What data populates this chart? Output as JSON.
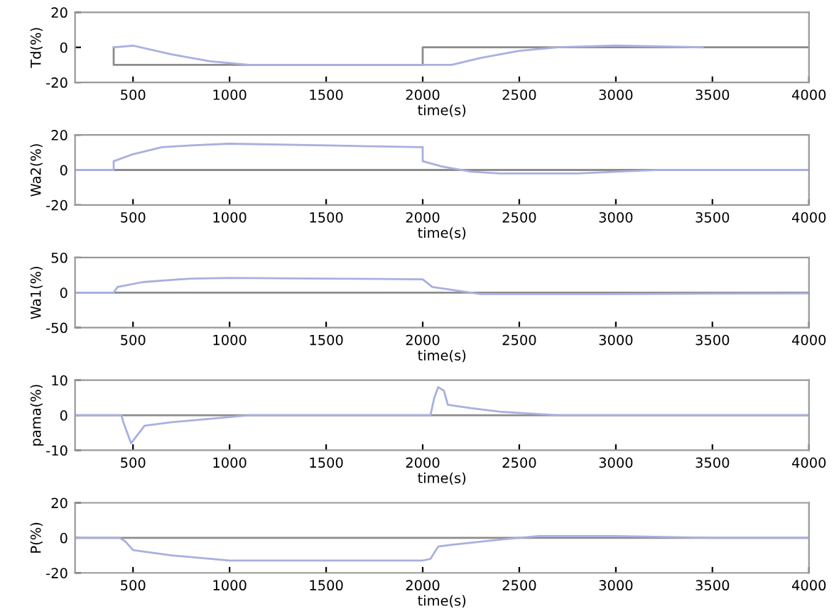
{
  "chart_data": [
    {
      "type": "line",
      "xlabel": "time(s)",
      "ylabel": "Td(%)",
      "xlim": [
        200,
        4000
      ],
      "xticks": [
        500,
        1000,
        1500,
        2000,
        2500,
        3000,
        3500,
        4000
      ],
      "ylim": [
        -20,
        20
      ],
      "yticks": [
        -20,
        0,
        20
      ],
      "series": [
        {
          "type": "step",
          "color": "#8c8c8c",
          "x": [
            400,
            400,
            2000,
            2000,
            4000
          ],
          "values": [
            0,
            -10,
            -10,
            0,
            0
          ]
        },
        {
          "color": "#a8b0e0",
          "x": [
            400,
            500,
            700,
            900,
            1100,
            1500,
            2000,
            2150,
            2300,
            2500,
            2700,
            3000,
            3450
          ],
          "values": [
            0,
            1,
            -4,
            -8,
            -10,
            -10,
            -10,
            -10,
            -6,
            -2,
            0,
            1,
            0
          ]
        }
      ]
    },
    {
      "type": "line",
      "xlabel": "time(s)",
      "ylabel": "Wa2(%)",
      "xlim": [
        200,
        4000
      ],
      "xticks": [
        500,
        1000,
        1500,
        2000,
        2500,
        3000,
        3500,
        4000
      ],
      "ylim": [
        -20,
        20
      ],
      "yticks": [
        -20,
        0,
        20
      ],
      "ref_lines": [
        {
          "axis": "y",
          "value": 0,
          "color": "#8c8c8c"
        }
      ],
      "series": [
        {
          "color": "#a8b0e0",
          "x": [
            200,
            400,
            400,
            500,
            650,
            800,
            1000,
            1500,
            2000,
            2000,
            2100,
            2250,
            2400,
            2800,
            3200,
            4000
          ],
          "values": [
            0,
            0,
            5,
            9,
            13,
            14,
            15,
            14,
            13,
            5,
            2,
            -1,
            -2,
            -2,
            0,
            0
          ]
        }
      ]
    },
    {
      "type": "line",
      "xlabel": "time(s)",
      "ylabel": "Wa1(%)",
      "xlim": [
        200,
        4000
      ],
      "xticks": [
        500,
        1000,
        1500,
        2000,
        2500,
        3000,
        3500,
        4000
      ],
      "ylim": [
        -50,
        50
      ],
      "yticks": [
        -50,
        0,
        50
      ],
      "ref_lines": [
        {
          "axis": "y",
          "value": 0,
          "color": "#8c8c8c"
        }
      ],
      "series": [
        {
          "color": "#a8b0e0",
          "x": [
            200,
            400,
            420,
            550,
            800,
            1000,
            1500,
            2000,
            2050,
            2200,
            2300,
            3000,
            4000
          ],
          "values": [
            0,
            0,
            8,
            15,
            20,
            21,
            20,
            19,
            8,
            2,
            -2,
            -2,
            -1
          ]
        }
      ]
    },
    {
      "type": "line",
      "xlabel": "time(s)",
      "ylabel": "pama(%)",
      "xlim": [
        200,
        4000
      ],
      "xticks": [
        500,
        1000,
        1500,
        2000,
        2500,
        3000,
        3500,
        4000
      ],
      "ylim": [
        -10,
        10
      ],
      "yticks": [
        -10,
        0,
        10
      ],
      "ref_lines": [
        {
          "axis": "y",
          "value": 0,
          "color": "#8c8c8c"
        }
      ],
      "series": [
        {
          "color": "#a8b0e0",
          "x": [
            200,
            440,
            450,
            490,
            560,
            700,
            900,
            1100,
            2040,
            2060,
            2080,
            2110,
            2130,
            2250,
            2400,
            2700,
            4000
          ],
          "values": [
            0,
            0,
            -2,
            -8,
            -3,
            -2,
            -1,
            0,
            0,
            5,
            8,
            7,
            3,
            2,
            1,
            0,
            0
          ]
        }
      ]
    },
    {
      "type": "line",
      "xlabel": "time(s)",
      "ylabel": "P(%)",
      "xlim": [
        200,
        4000
      ],
      "xticks": [
        500,
        1000,
        1500,
        2000,
        2500,
        3000,
        3500,
        4000
      ],
      "ylim": [
        -20,
        20
      ],
      "yticks": [
        -20,
        0,
        20
      ],
      "ref_lines": [
        {
          "axis": "y",
          "value": 0,
          "color": "#8c8c8c"
        }
      ],
      "series": [
        {
          "color": "#a8b0e0",
          "x": [
            200,
            430,
            460,
            500,
            700,
            1000,
            2000,
            2040,
            2080,
            2150,
            2400,
            2600,
            3000,
            3500,
            4000
          ],
          "values": [
            0,
            0,
            -2,
            -7,
            -10,
            -13,
            -13,
            -12,
            -5,
            -4,
            -1,
            1,
            1,
            0,
            0
          ]
        }
      ]
    }
  ]
}
